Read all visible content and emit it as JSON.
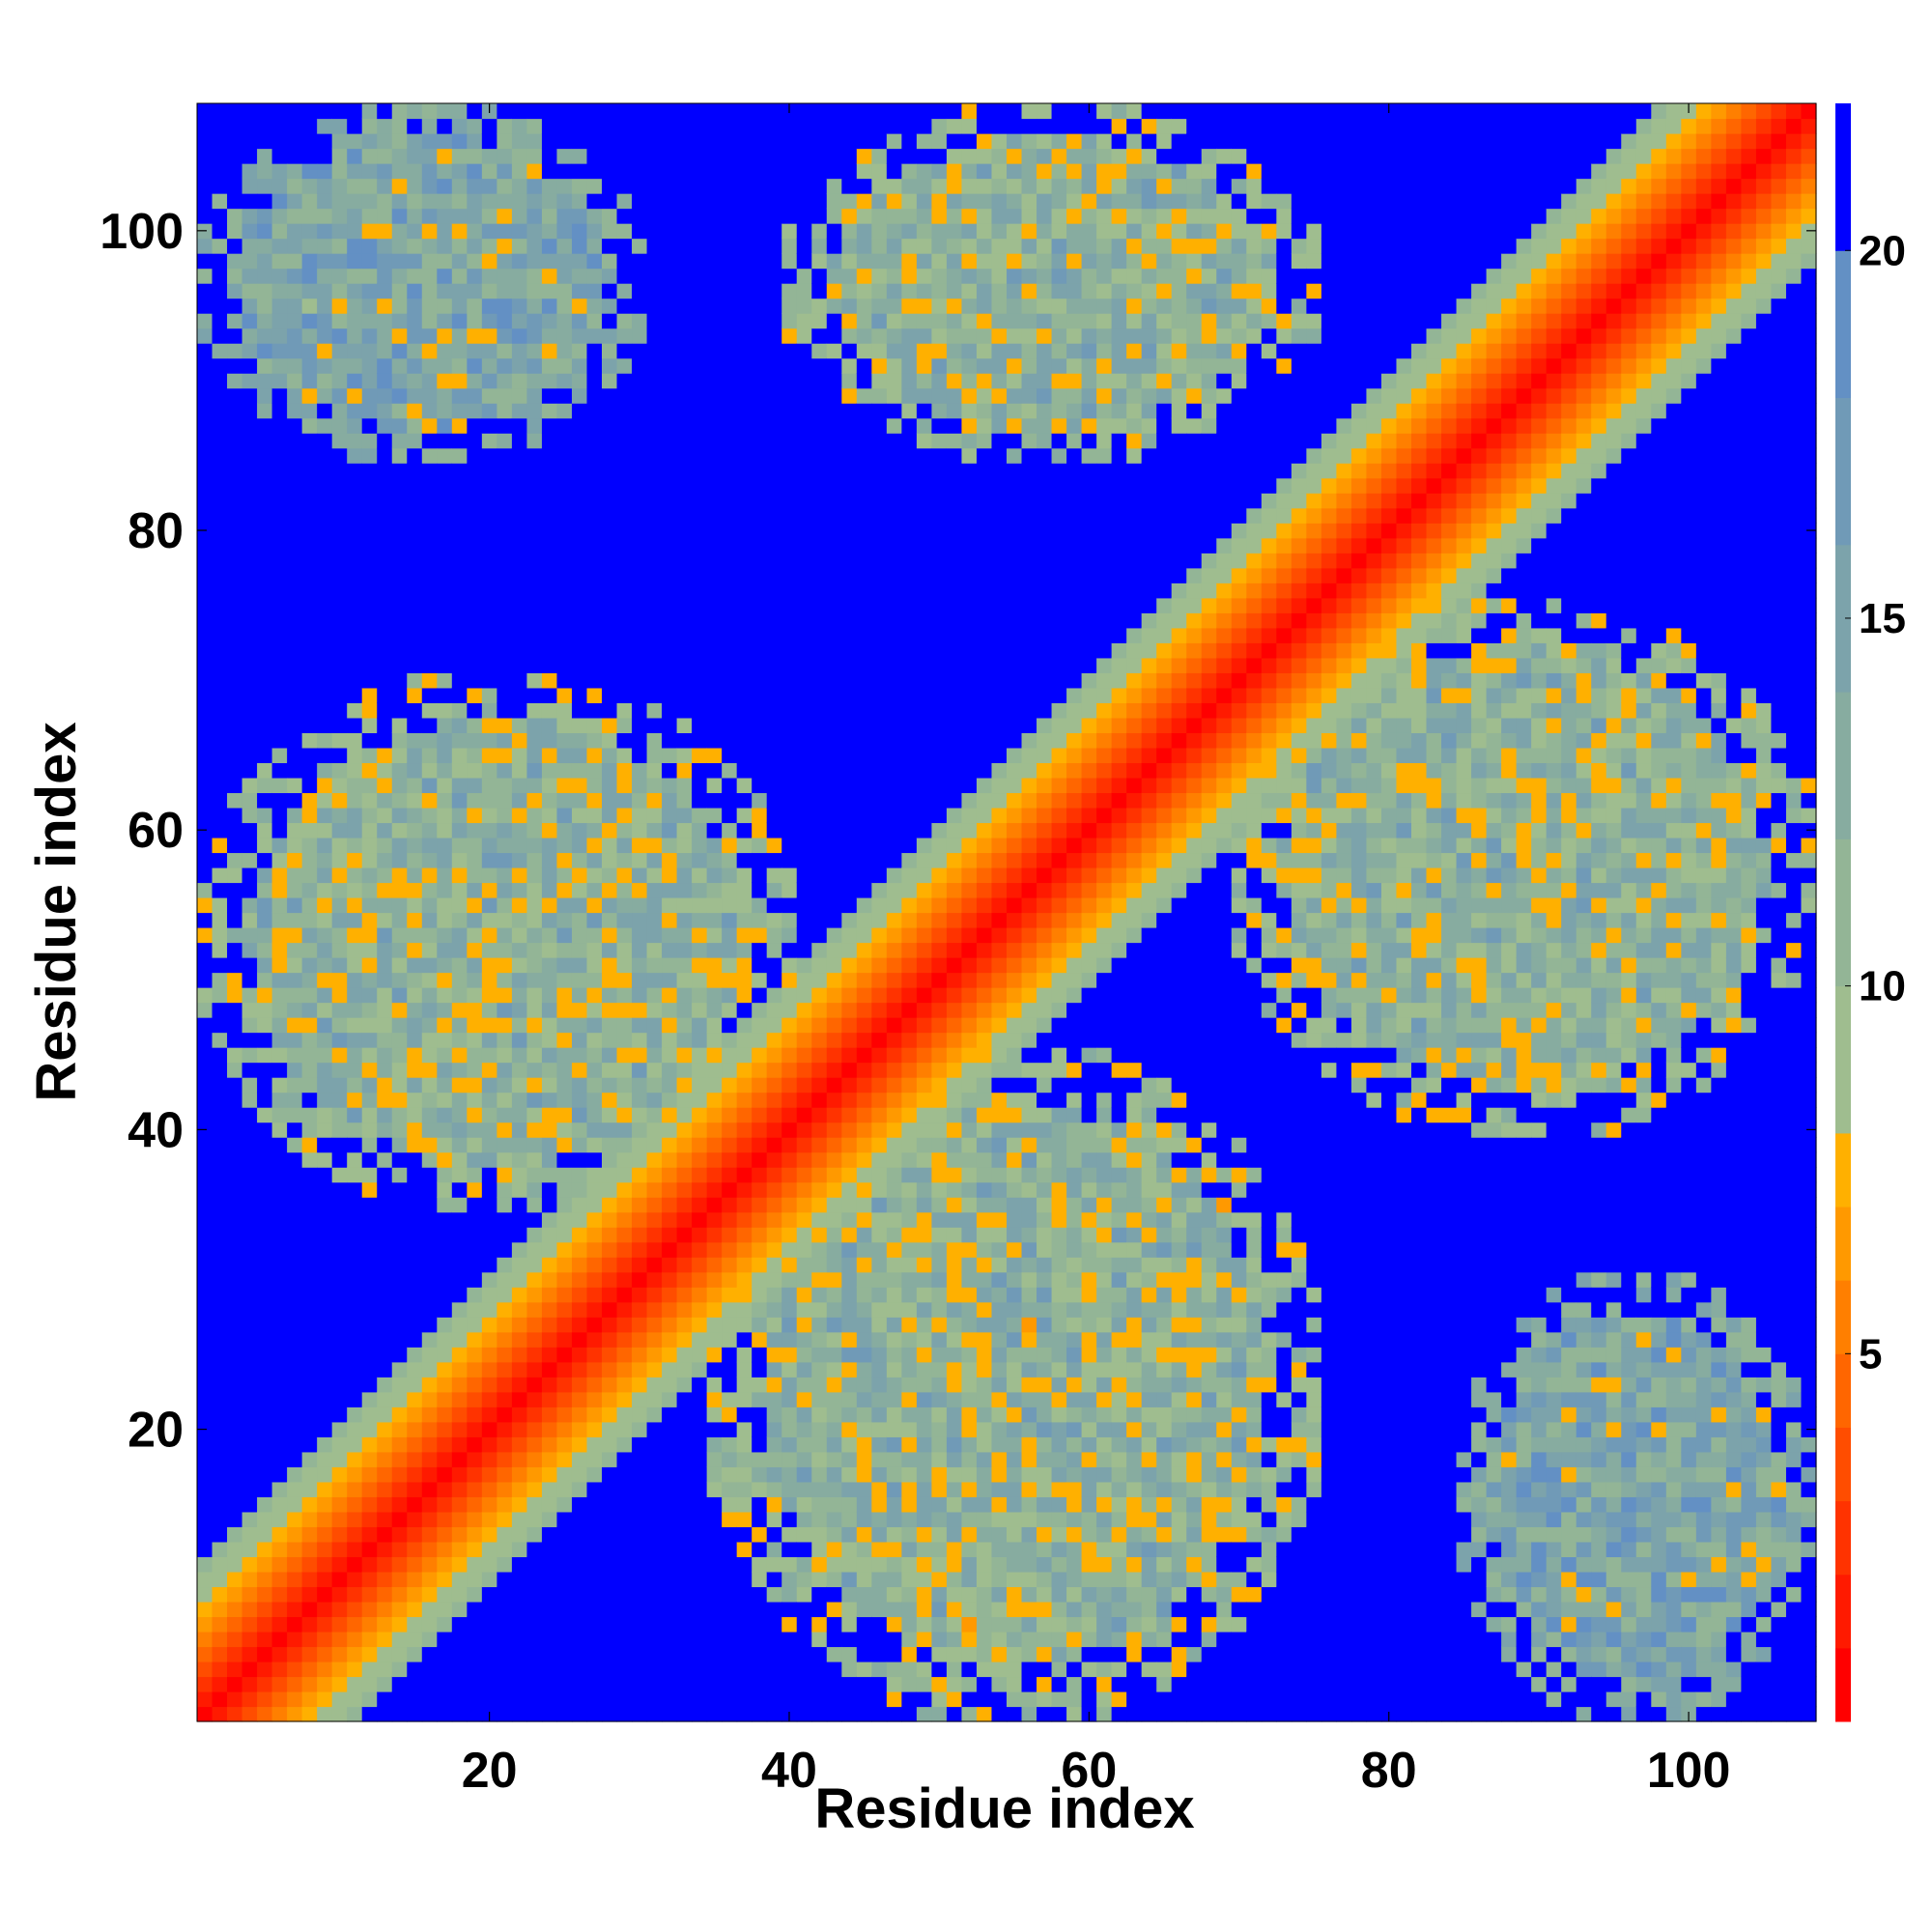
{
  "chart_data": {
    "type": "heatmap",
    "title": "",
    "xlabel": "Residue index",
    "ylabel": "Residue index",
    "xlim": [
      1,
      108
    ],
    "ylim": [
      1,
      108
    ],
    "x_ticks": [
      20,
      40,
      60,
      80,
      100
    ],
    "y_ticks": [
      20,
      40,
      60,
      80,
      100
    ],
    "colorbar": {
      "ticks": [
        5,
        10,
        15,
        20
      ],
      "range": [
        0,
        22
      ],
      "levels": [
        {
          "max": 1,
          "color": "#ff0000"
        },
        {
          "max": 2,
          "color": "#ff1a00"
        },
        {
          "max": 3,
          "color": "#ff3300"
        },
        {
          "max": 4,
          "color": "#ff4d00"
        },
        {
          "max": 5,
          "color": "#ff6600"
        },
        {
          "max": 6,
          "color": "#ff7f00"
        },
        {
          "max": 7,
          "color": "#ff9900"
        },
        {
          "max": 8,
          "color": "#ffb000"
        },
        {
          "max": 10,
          "color": "#9fbd8f"
        },
        {
          "max": 12,
          "color": "#93b596"
        },
        {
          "max": 14,
          "color": "#87aca0"
        },
        {
          "max": 16,
          "color": "#7ca3ab"
        },
        {
          "max": 18,
          "color": "#709ab7"
        },
        {
          "max": 20,
          "color": "#6390c4"
        },
        {
          "max": 22,
          "color": "#0000ff"
        }
      ]
    },
    "matrix_description_values": {
      "n": 108,
      "diagonal_band": {
        "center_value": 0,
        "slope_per_residue": 1.0
      },
      "contact_regions": [
        {
          "i_range": [
            1,
            30
          ],
          "j_range": [
            85,
            108
          ],
          "value": 15
        },
        {
          "i_range": [
            1,
            40
          ],
          "j_range": [
            35,
            70
          ],
          "value": 12
        },
        {
          "i_range": [
            35,
            75
          ],
          "j_range": [
            1,
            45
          ],
          "value": 12
        },
        {
          "i_range": [
            40,
            75
          ],
          "j_range": [
            85,
            108
          ],
          "value": 12
        },
        {
          "i_range": [
            70,
            108
          ],
          "j_range": [
            40,
            75
          ],
          "value": 12
        },
        {
          "i_range": [
            85,
            108
          ],
          "j_range": [
            1,
            30
          ],
          "value": 15
        }
      ],
      "background_value": 22
    }
  }
}
